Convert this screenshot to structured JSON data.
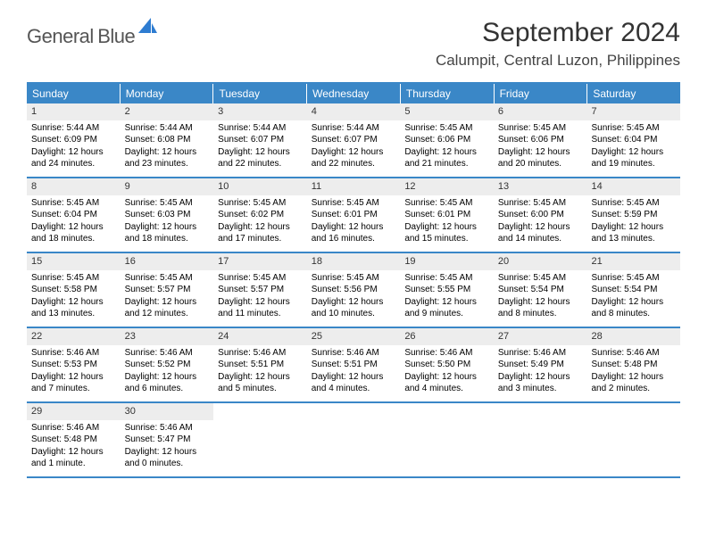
{
  "brand": {
    "name_top": "General",
    "name_bottom": "Blue",
    "icon_color": "#2e7cd1",
    "text_color": "#555"
  },
  "title": "September 2024",
  "location": "Calumpit, Central Luzon, Philippines",
  "colors": {
    "header_bg": "#3a87c7",
    "daynum_bg": "#ededed",
    "border": "#3a87c7"
  },
  "fonts": {
    "title_size": 30,
    "location_size": 17,
    "dow_size": 12,
    "cell_size": 10
  },
  "days_of_week": [
    "Sunday",
    "Monday",
    "Tuesday",
    "Wednesday",
    "Thursday",
    "Friday",
    "Saturday"
  ],
  "labels": {
    "sunrise": "Sunrise:",
    "sunset": "Sunset:",
    "daylight_prefix": "Daylight:"
  },
  "weeks": [
    [
      {
        "n": "1",
        "sunrise": "5:44 AM",
        "sunset": "6:09 PM",
        "daylight": "12 hours and 24 minutes."
      },
      {
        "n": "2",
        "sunrise": "5:44 AM",
        "sunset": "6:08 PM",
        "daylight": "12 hours and 23 minutes."
      },
      {
        "n": "3",
        "sunrise": "5:44 AM",
        "sunset": "6:07 PM",
        "daylight": "12 hours and 22 minutes."
      },
      {
        "n": "4",
        "sunrise": "5:44 AM",
        "sunset": "6:07 PM",
        "daylight": "12 hours and 22 minutes."
      },
      {
        "n": "5",
        "sunrise": "5:45 AM",
        "sunset": "6:06 PM",
        "daylight": "12 hours and 21 minutes."
      },
      {
        "n": "6",
        "sunrise": "5:45 AM",
        "sunset": "6:06 PM",
        "daylight": "12 hours and 20 minutes."
      },
      {
        "n": "7",
        "sunrise": "5:45 AM",
        "sunset": "6:04 PM",
        "daylight": "12 hours and 19 minutes."
      }
    ],
    [
      {
        "n": "8",
        "sunrise": "5:45 AM",
        "sunset": "6:04 PM",
        "daylight": "12 hours and 18 minutes."
      },
      {
        "n": "9",
        "sunrise": "5:45 AM",
        "sunset": "6:03 PM",
        "daylight": "12 hours and 18 minutes."
      },
      {
        "n": "10",
        "sunrise": "5:45 AM",
        "sunset": "6:02 PM",
        "daylight": "12 hours and 17 minutes."
      },
      {
        "n": "11",
        "sunrise": "5:45 AM",
        "sunset": "6:01 PM",
        "daylight": "12 hours and 16 minutes."
      },
      {
        "n": "12",
        "sunrise": "5:45 AM",
        "sunset": "6:01 PM",
        "daylight": "12 hours and 15 minutes."
      },
      {
        "n": "13",
        "sunrise": "5:45 AM",
        "sunset": "6:00 PM",
        "daylight": "12 hours and 14 minutes."
      },
      {
        "n": "14",
        "sunrise": "5:45 AM",
        "sunset": "5:59 PM",
        "daylight": "12 hours and 13 minutes."
      }
    ],
    [
      {
        "n": "15",
        "sunrise": "5:45 AM",
        "sunset": "5:58 PM",
        "daylight": "12 hours and 13 minutes."
      },
      {
        "n": "16",
        "sunrise": "5:45 AM",
        "sunset": "5:57 PM",
        "daylight": "12 hours and 12 minutes."
      },
      {
        "n": "17",
        "sunrise": "5:45 AM",
        "sunset": "5:57 PM",
        "daylight": "12 hours and 11 minutes."
      },
      {
        "n": "18",
        "sunrise": "5:45 AM",
        "sunset": "5:56 PM",
        "daylight": "12 hours and 10 minutes."
      },
      {
        "n": "19",
        "sunrise": "5:45 AM",
        "sunset": "5:55 PM",
        "daylight": "12 hours and 9 minutes."
      },
      {
        "n": "20",
        "sunrise": "5:45 AM",
        "sunset": "5:54 PM",
        "daylight": "12 hours and 8 minutes."
      },
      {
        "n": "21",
        "sunrise": "5:45 AM",
        "sunset": "5:54 PM",
        "daylight": "12 hours and 8 minutes."
      }
    ],
    [
      {
        "n": "22",
        "sunrise": "5:46 AM",
        "sunset": "5:53 PM",
        "daylight": "12 hours and 7 minutes."
      },
      {
        "n": "23",
        "sunrise": "5:46 AM",
        "sunset": "5:52 PM",
        "daylight": "12 hours and 6 minutes."
      },
      {
        "n": "24",
        "sunrise": "5:46 AM",
        "sunset": "5:51 PM",
        "daylight": "12 hours and 5 minutes."
      },
      {
        "n": "25",
        "sunrise": "5:46 AM",
        "sunset": "5:51 PM",
        "daylight": "12 hours and 4 minutes."
      },
      {
        "n": "26",
        "sunrise": "5:46 AM",
        "sunset": "5:50 PM",
        "daylight": "12 hours and 4 minutes."
      },
      {
        "n": "27",
        "sunrise": "5:46 AM",
        "sunset": "5:49 PM",
        "daylight": "12 hours and 3 minutes."
      },
      {
        "n": "28",
        "sunrise": "5:46 AM",
        "sunset": "5:48 PM",
        "daylight": "12 hours and 2 minutes."
      }
    ],
    [
      {
        "n": "29",
        "sunrise": "5:46 AM",
        "sunset": "5:48 PM",
        "daylight": "12 hours and 1 minute."
      },
      {
        "n": "30",
        "sunrise": "5:46 AM",
        "sunset": "5:47 PM",
        "daylight": "12 hours and 0 minutes."
      },
      {
        "empty": true
      },
      {
        "empty": true
      },
      {
        "empty": true
      },
      {
        "empty": true
      },
      {
        "empty": true
      }
    ]
  ]
}
